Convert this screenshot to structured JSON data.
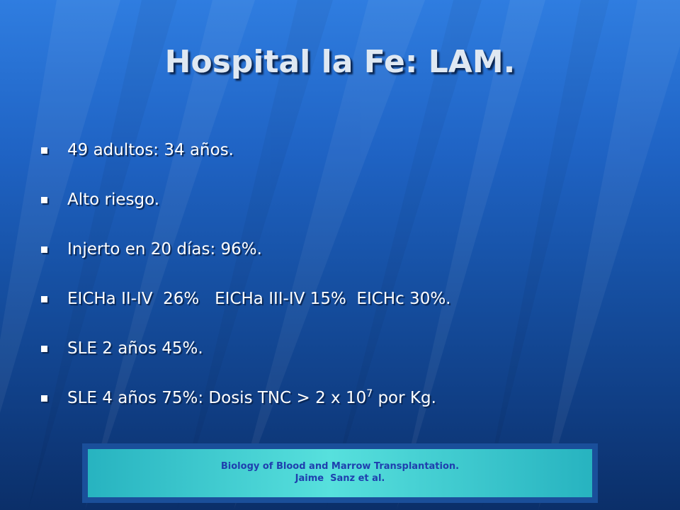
{
  "slide": {
    "title": "Hospital la Fe: LAM.",
    "bullets": [
      {
        "text": "49 adultos: 34 años."
      },
      {
        "text": "Alto riesgo."
      },
      {
        "text": "Injerto en 20 días: 96%."
      },
      {
        "text": "EICHa II-IV  26%   EICHa III-IV 15%  EICHc 30%."
      },
      {
        "text": "SLE 2 años 45%."
      },
      {
        "text_before": "SLE 4 años 75%: Dosis TNC > 2 x 10",
        "superscript": "7",
        "text_after": " por Kg."
      }
    ],
    "citation": {
      "line1": "Biology of Blood and Marrow Transplantation.",
      "line2": "Jaime  Sanz et al."
    }
  },
  "colors": {
    "background_top": "#2f7de0",
    "background_bottom": "#0b2f69",
    "title_text": "#dfe8f2",
    "bullet_text": "#ffffff",
    "citation_box": "#57e0dd",
    "citation_text": "#1f3fae"
  },
  "icons": {
    "bullet_marker": "square-bullet-icon"
  }
}
